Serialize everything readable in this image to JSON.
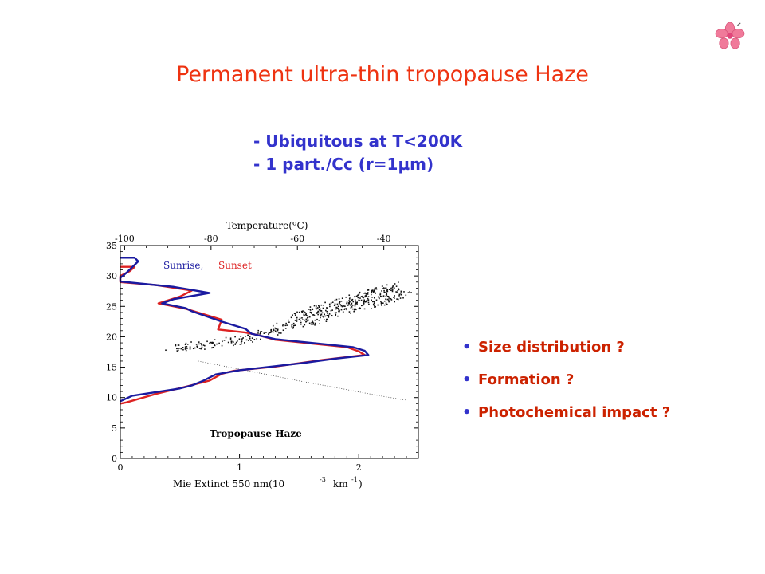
{
  "slide": {
    "title": "Permanent ultra-thin tropopause Haze",
    "top_bullets": [
      "- Ubiquitous at T<200K",
      "- 1 part./Cc (r=1µm)"
    ],
    "right_bullets": [
      "Size distribution ?",
      "Formation ?",
      "Photochemical impact ?"
    ],
    "bullet_glyph": "•",
    "decoration_icon": "flower-icon",
    "colors": {
      "title": "#ee3311",
      "top_bullets": "#3333cc",
      "right_bullets": "#cc2200",
      "bullet_dot": "#3333cc"
    }
  },
  "chart_data": {
    "type": "line",
    "top_axis": {
      "label": "Temperature(ºC)",
      "ticks": [
        -100,
        -80,
        -60,
        -40
      ],
      "range": [
        -101,
        -32
      ]
    },
    "x_axis": {
      "label_main": "Mie Extinct 550 nm(10",
      "label_exp1": "-3",
      "label_mid": "km",
      "label_exp2": "-1",
      "label_end": ")",
      "ticks": [
        0,
        1,
        2
      ],
      "range": [
        0,
        2.5
      ]
    },
    "y_axis": {
      "ticks": [
        0,
        5,
        10,
        15,
        20,
        25,
        30,
        35
      ],
      "range": [
        0,
        35
      ]
    },
    "legend": {
      "sunrise": "Sunrise,",
      "sunset": "Sunset",
      "placement": "top-left"
    },
    "annotation": "Tropopause Haze",
    "series": [
      {
        "name": "Sunrise,",
        "color": "#1a1aa0",
        "points": [
          [
            0.0,
            33
          ],
          [
            0.12,
            33
          ],
          [
            0.15,
            32.4
          ],
          [
            0.05,
            30.5
          ],
          [
            0.0,
            29.7
          ],
          [
            0.0,
            29.1
          ],
          [
            0.45,
            28.2
          ],
          [
            0.75,
            27.2
          ],
          [
            0.45,
            26.2
          ],
          [
            0.35,
            25.5
          ],
          [
            0.55,
            24.7
          ],
          [
            0.6,
            24.2
          ],
          [
            0.85,
            22.5
          ],
          [
            1.05,
            21.3
          ],
          [
            1.1,
            20.5
          ],
          [
            1.3,
            19.6
          ],
          [
            1.95,
            18.3
          ],
          [
            2.05,
            17.7
          ],
          [
            2.08,
            17.0
          ],
          [
            1.8,
            16.4
          ],
          [
            1.5,
            15.6
          ],
          [
            1.0,
            14.5
          ],
          [
            0.8,
            13.8
          ],
          [
            0.7,
            12.8
          ],
          [
            0.6,
            12.0
          ],
          [
            0.5,
            11.5
          ],
          [
            0.1,
            10.3
          ],
          [
            0.0,
            9.4
          ]
        ]
      },
      {
        "name": "Sunset",
        "color": "#dd2222",
        "points": [
          [
            0.0,
            31.5
          ],
          [
            0.12,
            31.5
          ],
          [
            0.08,
            30.8
          ],
          [
            0.0,
            30.0
          ],
          [
            0.0,
            29.0
          ],
          [
            0.3,
            28.5
          ],
          [
            0.6,
            27.6
          ],
          [
            0.5,
            26.6
          ],
          [
            0.32,
            25.5
          ],
          [
            0.55,
            24.6
          ],
          [
            0.85,
            22.8
          ],
          [
            0.82,
            21.2
          ],
          [
            1.05,
            20.7
          ],
          [
            1.15,
            20.3
          ],
          [
            1.3,
            19.5
          ],
          [
            1.9,
            18.3
          ],
          [
            2.0,
            17.6
          ],
          [
            2.05,
            17.0
          ],
          [
            1.7,
            16.2
          ],
          [
            1.3,
            15.1
          ],
          [
            0.95,
            14.4
          ],
          [
            0.85,
            13.9
          ],
          [
            0.75,
            12.8
          ],
          [
            0.55,
            11.8
          ],
          [
            0.3,
            10.6
          ],
          [
            0.05,
            9.2
          ],
          [
            0.0,
            9.0
          ]
        ]
      }
    ],
    "temperature_trend": {
      "temp": [
        -90,
        -84,
        -78,
        -72,
        -66,
        -61,
        -56,
        -51,
        -46,
        -42,
        -38,
        -35
      ],
      "alt": [
        18.2,
        18.6,
        19.0,
        19.8,
        21.0,
        22.5,
        23.8,
        24.9,
        25.8,
        26.6,
        27.3,
        28.0
      ]
    },
    "temperature_thin_line": {
      "temp": [
        -83,
        -70,
        -60,
        -50,
        -41,
        -35
      ],
      "alt": [
        16.0,
        14.2,
        12.8,
        11.5,
        10.3,
        9.6
      ]
    }
  }
}
